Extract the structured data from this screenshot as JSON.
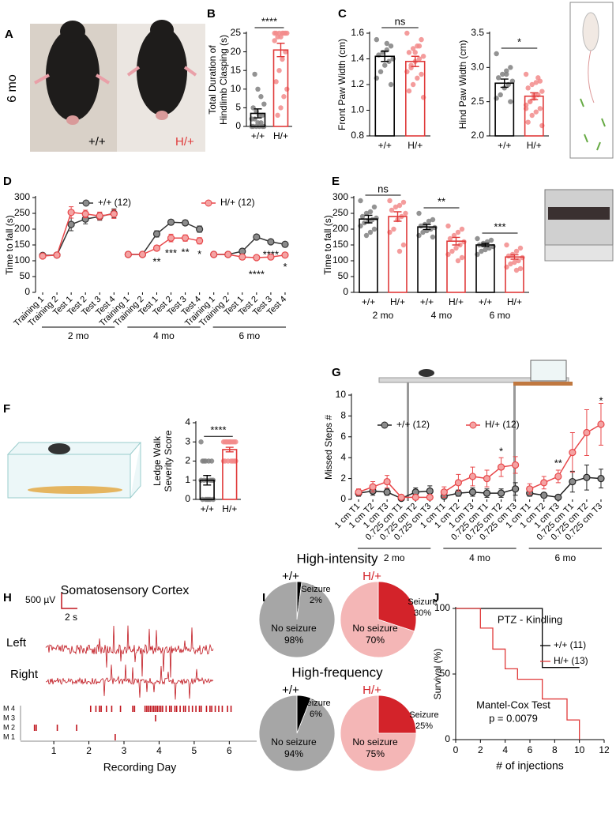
{
  "panel_a": {
    "panel": "A",
    "age": "6 mo",
    "genotypes": [
      "+/+",
      "H/+"
    ]
  },
  "chart_data": [
    {
      "type": "bar",
      "panel": "B",
      "ylabel": [
        "Total Duration of",
        "Hindlimb Clasping (s)"
      ],
      "categories": [
        "+/+",
        "H/+"
      ],
      "values": [
        3.5,
        20.5
      ],
      "errors": [
        1.2,
        1.8
      ],
      "edge_colors": [
        "#000000",
        "#e03a3a"
      ],
      "point_colors": [
        "#808080",
        "#f28b8b"
      ],
      "points": [
        [
          0,
          0,
          0,
          0,
          0,
          0,
          1,
          1,
          2,
          2,
          3,
          3,
          4,
          5,
          6,
          8,
          10,
          14
        ],
        [
          25,
          25,
          25,
          25,
          25,
          25,
          25,
          24,
          24,
          23,
          20,
          18,
          15,
          12,
          10,
          8,
          5,
          3
        ]
      ],
      "ylim": [
        0,
        25
      ],
      "yticks": [
        0,
        5,
        10,
        15,
        20,
        25
      ],
      "annotations": [
        "****"
      ]
    },
    {
      "type": "bar",
      "panel": "C",
      "ylabel": "Front Paw Width (cm)",
      "categories": [
        "+/+",
        "H/+"
      ],
      "values": [
        1.42,
        1.38
      ],
      "errors": [
        0.04,
        0.04
      ],
      "edge_colors": [
        "#000000",
        "#e03a3a"
      ],
      "point_colors": [
        "#808080",
        "#f28b8b"
      ],
      "points": [
        [
          1.55,
          1.5,
          1.47,
          1.45,
          1.43,
          1.4,
          1.38,
          1.35,
          1.3,
          1.25,
          1.2,
          1.52
        ],
        [
          1.6,
          1.55,
          1.5,
          1.48,
          1.45,
          1.42,
          1.4,
          1.38,
          1.35,
          1.3,
          1.28,
          1.25,
          1.2,
          1.15,
          1.1,
          1.5,
          1.45,
          1.33
        ]
      ],
      "ylim": [
        0.8,
        1.6
      ],
      "yticks": [
        0.8,
        {
          "value": 1,
          "label": "1.0"
        },
        1.2,
        1.4,
        1.6
      ],
      "annotations": [
        "ns"
      ]
    },
    {
      "type": "bar",
      "ylabel": "Hind Paw Width (cm)",
      "categories": [
        "+/+",
        "H/+"
      ],
      "values": [
        2.77,
        2.58
      ],
      "errors": [
        0.06,
        0.05
      ],
      "edge_colors": [
        "#000000",
        "#e03a3a"
      ],
      "point_colors": [
        "#808080",
        "#f28b8b"
      ],
      "points": [
        [
          3.2,
          3.0,
          2.95,
          2.9,
          2.85,
          2.8,
          2.75,
          2.7,
          2.6,
          2.55,
          2.5,
          2.9
        ],
        [
          2.9,
          2.8,
          2.78,
          2.75,
          2.7,
          2.65,
          2.6,
          2.55,
          2.5,
          2.45,
          2.4,
          2.35,
          2.3,
          2.2,
          2.15,
          2.85,
          2.6,
          2.5,
          2.4
        ]
      ],
      "ylim": [
        2,
        3.5
      ],
      "yticks": [
        {
          "value": 2,
          "label": "2.0"
        },
        2.5,
        {
          "value": 3,
          "label": "3.0"
        },
        3.5
      ],
      "annotations": [
        "*"
      ]
    },
    {
      "type": "line",
      "panel": "D",
      "ylabel": "Time to fall (s)",
      "categories": [
        "Training 1",
        "Training 2",
        "Test 1",
        "Test 2",
        "Test 3",
        "Test 4",
        "Training 1",
        "Training 2",
        "Test 1",
        "Test 2",
        "Test 3",
        "Test 4",
        "Training 1",
        "Training 2",
        "Test 1",
        "Test 2",
        "Test 3",
        "Test 4"
      ],
      "groups": [
        "2 mo",
        "4 mo",
        "6 mo"
      ],
      "series": [
        {
          "name": "+/+ (12)",
          "color": "#333333",
          "marker_color": "#8c8c8c",
          "values": [
            117,
            118,
            215,
            232,
            240,
            250,
            120,
            120,
            185,
            222,
            220,
            200,
            120,
            120,
            130,
            175,
            160,
            152
          ],
          "errors": [
            6,
            6,
            20,
            15,
            12,
            14,
            5,
            5,
            10,
            8,
            8,
            10,
            5,
            5,
            6,
            7,
            6,
            5
          ]
        },
        {
          "name": "H/+ (12)",
          "color": "#e8474a",
          "marker_color": "#f4a3a3",
          "values": [
            115,
            118,
            253,
            248,
            242,
            248,
            120,
            120,
            140,
            172,
            172,
            163,
            120,
            120,
            112,
            110,
            112,
            118
          ],
          "errors": [
            6,
            6,
            18,
            12,
            12,
            14,
            5,
            5,
            8,
            12,
            10,
            10,
            5,
            5,
            8,
            6,
            5,
            6
          ]
        }
      ],
      "ylim": [
        0,
        300
      ],
      "yticks": [
        0,
        50,
        100,
        150,
        200,
        250,
        300
      ],
      "annotations": [
        "**",
        "***",
        "**",
        "*",
        "****",
        "****",
        "*"
      ]
    },
    {
      "type": "bar",
      "panel": "E",
      "ylabel": "Time to fall (s)",
      "categories": [
        "+/+",
        "H/+",
        "+/+",
        "H/+",
        "+/+",
        "H/+"
      ],
      "groups": [
        "2 mo",
        "4 mo",
        "6 mo"
      ],
      "values": [
        232,
        240,
        207,
        162,
        150,
        112
      ],
      "errors": [
        12,
        15,
        8,
        12,
        5,
        7
      ],
      "edge_colors": [
        "#000000",
        "#e03a3a"
      ],
      "point_colors": [
        "#808080",
        "#f28b8b"
      ],
      "points": [
        [
          290,
          270,
          255,
          250,
          240,
          235,
          230,
          225,
          220,
          210,
          200,
          190,
          180
        ],
        [
          290,
          285,
          275,
          270,
          260,
          250,
          240,
          230,
          200,
          190,
          150,
          130
        ],
        [
          250,
          230,
          225,
          215,
          210,
          205,
          200,
          195,
          190,
          180,
          175
        ],
        [
          210,
          200,
          190,
          180,
          170,
          160,
          150,
          140,
          130,
          120,
          110,
          100
        ],
        [
          170,
          165,
          160,
          155,
          150,
          145,
          140,
          135,
          130,
          120
        ],
        [
          150,
          140,
          130,
          120,
          115,
          110,
          100,
          95,
          90,
          80,
          75,
          70
        ]
      ],
      "ylim": [
        0,
        300
      ],
      "yticks": [
        0,
        50,
        100,
        150,
        200,
        250,
        300
      ],
      "annotations": [
        "ns",
        "**",
        "***"
      ]
    },
    {
      "type": "bar",
      "panel": "F",
      "ylabel": [
        "Ledge Walk",
        "Severity Score"
      ],
      "categories": [
        "+/+",
        "H/+"
      ],
      "values": [
        1.0,
        2.6
      ],
      "errors": [
        0.25,
        0.12
      ],
      "edge_colors": [
        "#000000",
        "#e03a3a"
      ],
      "point_colors": [
        "#808080",
        "#f28b8b"
      ],
      "points": [
        [
          3,
          2,
          2,
          2,
          2,
          1,
          1,
          1,
          1,
          1,
          1,
          0,
          0,
          0,
          0,
          0,
          0,
          2
        ],
        [
          3,
          3,
          3,
          3,
          3,
          3,
          3,
          3,
          3,
          2,
          2,
          2,
          2,
          2,
          2,
          2,
          3,
          3
        ]
      ],
      "ylim": [
        0,
        4
      ],
      "yticks": [
        0,
        1,
        2,
        3,
        4
      ],
      "annotations": [
        "****"
      ]
    },
    {
      "type": "line",
      "panel": "G",
      "ylabel": "Missed Steps #",
      "categories": [
        "1 cm T1",
        "1 cm T2",
        "1 cm T3",
        "0.725 cm T1",
        "0.725 cm T2",
        "0.725 cm T3",
        "1 cm T1",
        "1 cm T2",
        "1 cm T3",
        "0.725 cm T1",
        "0.725 cm T2",
        "0.725 cm T3",
        "1 cm T1",
        "1 cm T2",
        "1 cm T3",
        "0.725 cm T1",
        "0.725 cm T2",
        "0.725 cm T3"
      ],
      "groups": [
        "2 mo",
        "4 mo",
        "6 mo"
      ],
      "series": [
        {
          "name": "+/+ (12)",
          "color": "#222222",
          "marker_color": "#8c8c8c",
          "values": [
            0.6,
            0.8,
            0.7,
            0.1,
            0.7,
            0.8,
            0.3,
            0.6,
            0.7,
            0.6,
            0.6,
            1.0,
            0.6,
            0.4,
            0.2,
            1.7,
            2.1,
            2.0
          ],
          "errors": [
            0.3,
            0.4,
            0.3,
            0.1,
            0.4,
            0.5,
            0.2,
            0.3,
            0.4,
            0.4,
            0.4,
            0.6,
            0.3,
            0.2,
            0.1,
            1.0,
            1.2,
            0.9
          ]
        },
        {
          "name": "H/+ (12)",
          "color": "#e8474a",
          "marker_color": "#f4a3a3",
          "values": [
            0.7,
            1.2,
            1.7,
            0.2,
            0.2,
            0.2,
            0.7,
            1.6,
            2.2,
            2.0,
            3.1,
            3.3,
            1.0,
            1.6,
            2.2,
            4.5,
            6.4,
            7.2
          ],
          "errors": [
            0.3,
            0.5,
            0.6,
            0.2,
            0.2,
            0.2,
            0.5,
            0.8,
            0.9,
            0.8,
            0.9,
            0.8,
            0.5,
            0.6,
            0.6,
            1.9,
            2.2,
            2.0
          ]
        }
      ],
      "ylim": [
        0,
        10
      ],
      "yticks": [
        0,
        2,
        4,
        6,
        8,
        10
      ],
      "annotations": [
        "*",
        "**",
        "*"
      ]
    },
    {
      "type": "raster",
      "panel": "H",
      "title": "Somatosensory Cortex",
      "scale_labels": [
        "500 µV",
        "2 s"
      ],
      "trace_labels": [
        "Left",
        "Right"
      ],
      "xlabel": "Recording Day",
      "xlim": [
        0.3,
        6.6
      ],
      "xticks": [
        1,
        2,
        3,
        4,
        5,
        6
      ],
      "rows": [
        {
          "name": "M 4",
          "events": [
            2.05,
            2.2,
            2.3,
            2.35,
            2.5,
            2.65,
            2.9,
            3.25,
            3.3,
            3.6,
            3.65,
            3.7,
            3.75,
            3.8,
            3.85,
            3.9,
            3.95,
            4.0,
            4.05,
            4.1,
            4.2,
            4.3,
            4.35,
            4.45,
            4.5,
            4.6,
            4.7,
            4.75,
            4.85,
            4.95,
            5.05,
            5.15,
            5.2,
            5.35,
            5.45,
            5.5,
            5.6,
            5.7,
            5.8,
            5.95,
            6.05
          ]
        },
        {
          "name": "M 3",
          "events": [
            3.9
          ]
        },
        {
          "name": "M 2",
          "events": [
            0.45,
            0.5,
            1.1,
            1.65
          ]
        },
        {
          "name": "M 1",
          "events": [
            2.75
          ]
        }
      ]
    },
    {
      "type": "pie",
      "panel": "I",
      "title": "High-intensity",
      "label": "+/+",
      "categories": [
        "Seizure",
        "No seizure"
      ],
      "values": [
        2,
        98
      ],
      "value_labels": [
        "2%",
        "98%"
      ],
      "colors": [
        "#000000",
        "#a6a6a6"
      ]
    },
    {
      "type": "pie",
      "label": "H/+",
      "categories": [
        "Seizure",
        "No seizure"
      ],
      "values": [
        30,
        70
      ],
      "value_labels": [
        "30%",
        "70%"
      ],
      "colors": [
        "#d3232a",
        "#f4b6b6"
      ]
    },
    {
      "type": "pie",
      "title": "High-frequency",
      "label": "+/+",
      "categories": [
        "Seizure",
        "No seizure"
      ],
      "values": [
        6,
        94
      ],
      "value_labels": [
        "6%",
        "94%"
      ],
      "colors": [
        "#000000",
        "#a6a6a6"
      ]
    },
    {
      "type": "pie",
      "label": "H/+",
      "categories": [
        "Seizure",
        "No seizure"
      ],
      "values": [
        25,
        75
      ],
      "value_labels": [
        "25%",
        "75%"
      ],
      "colors": [
        "#d3232a",
        "#f4b6b6"
      ]
    },
    {
      "type": "step",
      "panel": "J",
      "title": "PTZ - Kindling",
      "xlabel": "# of injections",
      "ylabel": "Survival (%)",
      "series": [
        {
          "name": "+/+ (11)",
          "color": "#000000",
          "x": [
            0,
            7,
            7,
            10
          ],
          "values": [
            100,
            100,
            55,
            55
          ]
        },
        {
          "name": "H/+ (13)",
          "color": "#e03a3a",
          "x": [
            0,
            2,
            2,
            3,
            3,
            4,
            4,
            5,
            5,
            7,
            7,
            9,
            9,
            10,
            10
          ],
          "values": [
            100,
            100,
            85,
            85,
            69,
            69,
            54,
            54,
            46,
            46,
            31,
            31,
            15,
            15,
            0
          ]
        }
      ],
      "xlim": [
        0,
        12
      ],
      "xticks": [
        0,
        2,
        4,
        6,
        8,
        10,
        12
      ],
      "ylim": [
        0,
        100
      ],
      "yticks": [
        0,
        50,
        100
      ],
      "annotations": [
        "Mantel-Cox Test",
        "p = 0.0079"
      ]
    }
  ]
}
